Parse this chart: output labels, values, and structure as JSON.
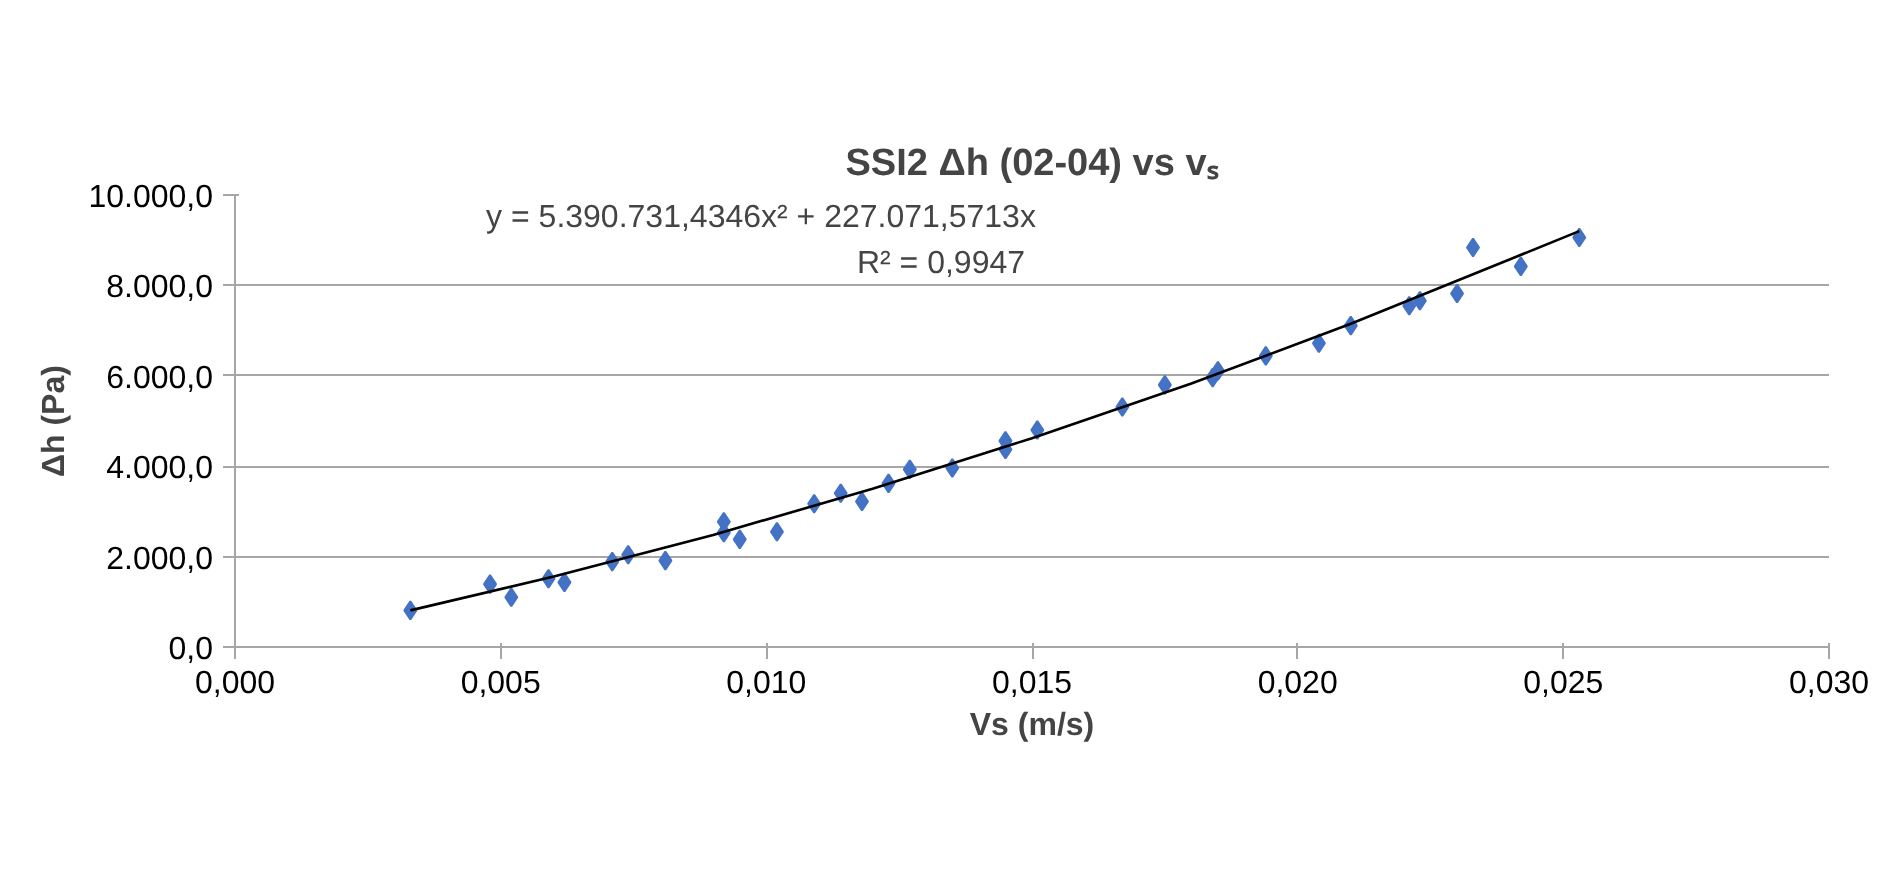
{
  "chart_data": {
    "type": "scatter",
    "title": "SSI2 Δh (02-04) vs vₛ",
    "xlabel": "Vs (m/s)",
    "ylabel": "Δh (Pa)",
    "xlim": [
      0,
      0.03
    ],
    "ylim": [
      0,
      10000
    ],
    "xticks": [
      {
        "value": 0,
        "label": "0,000"
      },
      {
        "value": 0.005,
        "label": "0,005"
      },
      {
        "value": 0.01,
        "label": "0,010"
      },
      {
        "value": 0.015,
        "label": "0,015"
      },
      {
        "value": 0.02,
        "label": "0,020"
      },
      {
        "value": 0.025,
        "label": "0,025"
      },
      {
        "value": 0.03,
        "label": "0,030"
      }
    ],
    "yticks": [
      {
        "value": 0,
        "label": "0,0"
      },
      {
        "value": 2000,
        "label": "2.000,0"
      },
      {
        "value": 4000,
        "label": "4.000,0"
      },
      {
        "value": 6000,
        "label": "6.000,0"
      },
      {
        "value": 8000,
        "label": "8.000,0"
      },
      {
        "value": 10000,
        "label": "10.000,0"
      }
    ],
    "grid": "y",
    "marker": "diamond",
    "annotations": [
      "y = 5.390.731,4346x² + 227.071,5713x",
      "R² = 0,9947"
    ],
    "series": [
      {
        "color": "#4472c4",
        "x": [
          0.0033,
          0.0048,
          0.0052,
          0.0059,
          0.0062,
          0.0071,
          0.0074,
          0.0081,
          0.0092,
          0.0092,
          0.0095,
          0.0102,
          0.0109,
          0.0114,
          0.0118,
          0.0123,
          0.0127,
          0.0135,
          0.0145,
          0.0145,
          0.0151,
          0.0167,
          0.0175,
          0.0184,
          0.0185,
          0.0194,
          0.0204,
          0.021,
          0.0221,
          0.0223,
          0.023,
          0.0233,
          0.0242,
          0.0253
        ],
        "values": [
          810,
          1390,
          1100,
          1510,
          1430,
          1890,
          2040,
          1910,
          2530,
          2770,
          2380,
          2550,
          3170,
          3400,
          3220,
          3620,
          3930,
          3960,
          4560,
          4370,
          4800,
          5310,
          5800,
          5960,
          6110,
          6440,
          6720,
          7110,
          7550,
          7660,
          7820,
          8840,
          8420,
          9060
        ]
      },
      {
        "type": "line",
        "color": "#000000",
        "marker": "none",
        "x": [
          0.0033,
          0.006,
          0.009,
          0.012,
          0.015,
          0.018,
          0.021,
          0.0253
        ],
        "values": [
          810,
          1560,
          2480,
          3500,
          4620,
          5830,
          7150,
          9200
        ]
      }
    ]
  }
}
